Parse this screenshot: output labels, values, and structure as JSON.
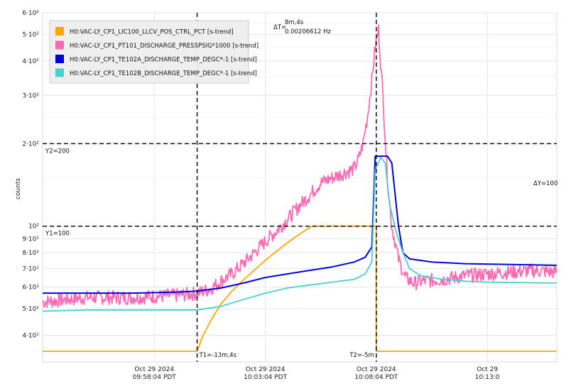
{
  "chart_data": {
    "type": "line",
    "ylabel": "counts",
    "y_scale": "log",
    "ylim": [
      32,
      600
    ],
    "y_ticks": [
      {
        "value": 40,
        "label": "4·10¹"
      },
      {
        "value": 50,
        "label": "5·10¹"
      },
      {
        "value": 60,
        "label": "6·10¹"
      },
      {
        "value": 70,
        "label": "7·10¹"
      },
      {
        "value": 80,
        "label": "8·10¹"
      },
      {
        "value": 90,
        "label": "9·10¹"
      },
      {
        "value": 100,
        "label": "10²"
      },
      {
        "value": 200,
        "label": "2·10²"
      },
      {
        "value": 300,
        "label": "3·10²"
      },
      {
        "value": 400,
        "label": "4·10²"
      },
      {
        "value": 500,
        "label": "5·10²"
      },
      {
        "value": 600,
        "label": "6·10²"
      }
    ],
    "x_unit": "minutes",
    "xlim": [
      -20.03,
      3.13
    ],
    "x_ticks": [
      {
        "value": -15,
        "line1": "Oct 29 2024",
        "line2": "09:58:04 PDT"
      },
      {
        "value": -10,
        "line1": "Oct 29 2024",
        "line2": "10:03:04 PDT"
      },
      {
        "value": -5,
        "line1": "Oct 29 2024",
        "line2": "10:08:04 PDT"
      },
      {
        "value": 0,
        "line1": "Oct 29",
        "line2": "10:13:0"
      }
    ],
    "grid": true,
    "legend_position": "top-left",
    "series": [
      {
        "name": "H0:VAC-LY_CP1_LIC100_LLCV_POS_CTRL_PCT [s-trend]",
        "color": "#FFA500",
        "points": [
          [
            -20.03,
            35
          ],
          [
            -13.07,
            35
          ],
          [
            -12.8,
            40
          ],
          [
            -12.4,
            46
          ],
          [
            -12.0,
            52
          ],
          [
            -11.5,
            58
          ],
          [
            -11.0,
            63.5
          ],
          [
            -10.5,
            69
          ],
          [
            -10.0,
            75
          ],
          [
            -9.5,
            81
          ],
          [
            -9.0,
            87
          ],
          [
            -8.5,
            93
          ],
          [
            -7.9,
            100
          ],
          [
            -5.0,
            100
          ],
          [
            -5.0,
            35
          ],
          [
            3.13,
            35
          ]
        ]
      },
      {
        "name": "H0:VAC-LY_CP1_PT101_DISCHARGE_PRESSPSIG*1000 [s-trend]",
        "color": "#FF69B4",
        "points": [
          [
            -20.03,
            53
          ],
          [
            -18,
            55
          ],
          [
            -16,
            55
          ],
          [
            -14,
            56
          ],
          [
            -13.07,
            57
          ],
          [
            -12.5,
            59
          ],
          [
            -12,
            63
          ],
          [
            -11.5,
            67
          ],
          [
            -11,
            73
          ],
          [
            -10.5,
            80
          ],
          [
            -10,
            88
          ],
          [
            -9.5,
            96
          ],
          [
            -9,
            106
          ],
          [
            -8.5,
            118
          ],
          [
            -8,
            130
          ],
          [
            -7.5,
            144
          ],
          [
            -7,
            150
          ],
          [
            -6.5,
            156
          ],
          [
            -6,
            162
          ],
          [
            -5.8,
            175
          ],
          [
            -5.6,
            200
          ],
          [
            -5.4,
            250
          ],
          [
            -5.2,
            340
          ],
          [
            -5.05,
            450
          ],
          [
            -4.9,
            520
          ],
          [
            -4.7,
            300
          ],
          [
            -4.5,
            150
          ],
          [
            -4.3,
            100
          ],
          [
            -4.0,
            76
          ],
          [
            -3.7,
            65
          ],
          [
            -3.3,
            62
          ],
          [
            -3,
            63
          ],
          [
            -2,
            64
          ],
          [
            -1,
            66
          ],
          [
            0,
            67
          ],
          [
            1,
            68
          ],
          [
            2,
            69
          ],
          [
            3.13,
            68
          ]
        ]
      },
      {
        "name": "H0:VAC-LY_CP1_TE102A_DISCHARGE_TEMP_DEGC*-1 [s-trend]",
        "color": "#0000DD",
        "points": [
          [
            -20.03,
            57
          ],
          [
            -18,
            57
          ],
          [
            -16,
            57
          ],
          [
            -14,
            57.5
          ],
          [
            -13.07,
            58
          ],
          [
            -12,
            59.5
          ],
          [
            -11,
            62
          ],
          [
            -10,
            65
          ],
          [
            -9,
            67
          ],
          [
            -8,
            69
          ],
          [
            -7,
            71
          ],
          [
            -6,
            74
          ],
          [
            -5.5,
            77
          ],
          [
            -5.2,
            84
          ],
          [
            -5.05,
            180
          ],
          [
            -4.5,
            180
          ],
          [
            -4.3,
            170
          ],
          [
            -4.0,
            100
          ],
          [
            -3.8,
            80
          ],
          [
            -3.5,
            76
          ],
          [
            -2.5,
            74
          ],
          [
            -1,
            73
          ],
          [
            3.13,
            72
          ]
        ]
      },
      {
        "name": "H0:VAC-LY_CP1_TE102B_DISCHARGE_TEMP_DEGC*-1 [s-trend]",
        "color": "#48D1CC",
        "points": [
          [
            -20.03,
            49
          ],
          [
            -18,
            49.5
          ],
          [
            -16,
            49.5
          ],
          [
            -14,
            49.5
          ],
          [
            -13.07,
            49.5
          ],
          [
            -12,
            51
          ],
          [
            -11,
            54
          ],
          [
            -10,
            57
          ],
          [
            -9,
            59.5
          ],
          [
            -8,
            61
          ],
          [
            -7,
            62.5
          ],
          [
            -6,
            64
          ],
          [
            -5.5,
            67
          ],
          [
            -5.2,
            74
          ],
          [
            -5.05,
            160
          ],
          [
            -4.8,
            178
          ],
          [
            -4.6,
            170
          ],
          [
            -4.4,
            120
          ],
          [
            -4.1,
            95
          ],
          [
            -3.8,
            80
          ],
          [
            -3.5,
            70
          ],
          [
            -3,
            66
          ],
          [
            -2,
            64
          ],
          [
            -1,
            63
          ],
          [
            0,
            62.5
          ],
          [
            3.13,
            62
          ]
        ]
      }
    ],
    "cursors": {
      "x": [
        {
          "value": -13.07,
          "label": "T1=-13m,4s"
        },
        {
          "value": -5.0,
          "label": "T2=-5m"
        }
      ],
      "y": [
        {
          "value": 200,
          "label": "Y2=200"
        },
        {
          "value": 100,
          "label": "Y1=100"
        }
      ],
      "delta_t": {
        "label": "ΔT=",
        "value": "8m,4s",
        "freq": "0.00206612 Hz"
      },
      "delta_y": "ΔY=100"
    }
  }
}
